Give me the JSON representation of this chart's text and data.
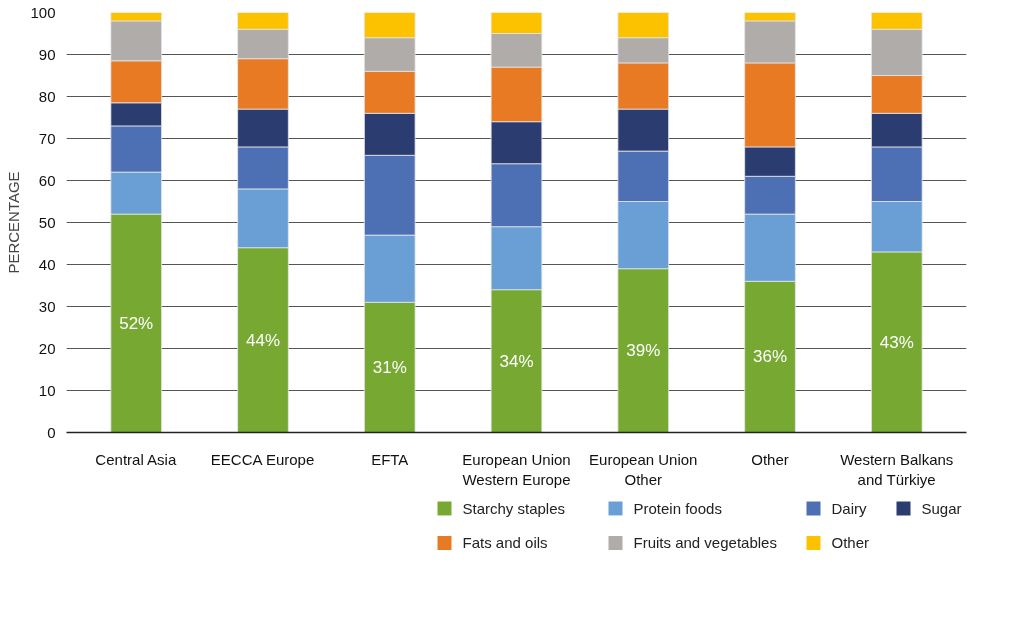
{
  "chart_data": {
    "type": "bar",
    "stacked": true,
    "ylabel": "PERCENTAGE",
    "categories": [
      "Central Asia",
      "EECCA Europe",
      "EFTA",
      "European Union Western Europe",
      "European Union Other",
      "Other",
      "Western Balkans and Türkiye"
    ],
    "series": [
      {
        "name": "Starchy staples",
        "color": "#76a832",
        "values": [
          52,
          44,
          31,
          34,
          39,
          36,
          43
        ],
        "value_labels": [
          "52%",
          "44%",
          "31%",
          "34%",
          "39%",
          "36%",
          "43%"
        ]
      },
      {
        "name": "Protein foods",
        "color": "#6a9fd5",
        "values": [
          10,
          14,
          16,
          15,
          16,
          16,
          12
        ]
      },
      {
        "name": "Dairy",
        "color": "#4d6fb4",
        "values": [
          11,
          10,
          19,
          15,
          12,
          9,
          13
        ]
      },
      {
        "name": "Sugar",
        "color": "#2a3c70",
        "values": [
          5.5,
          9,
          10,
          10,
          10,
          7,
          8
        ]
      },
      {
        "name": "Fats and oils",
        "color": "#e87a24",
        "values": [
          10,
          12,
          10,
          13,
          11,
          20,
          9
        ]
      },
      {
        "name": "Fruits and vegetables",
        "color": "#b0acaa",
        "values": [
          9.5,
          7,
          8,
          8,
          6,
          10,
          11
        ]
      },
      {
        "name": "Other",
        "color": "#fcc200",
        "values": [
          2,
          4,
          6,
          5,
          6,
          2,
          4
        ]
      }
    ],
    "ylim": [
      0,
      100
    ],
    "yticks": [
      0,
      10,
      20,
      30,
      40,
      50,
      60,
      70,
      80,
      90,
      100
    ],
    "grid": "y",
    "legend": "bottom"
  }
}
